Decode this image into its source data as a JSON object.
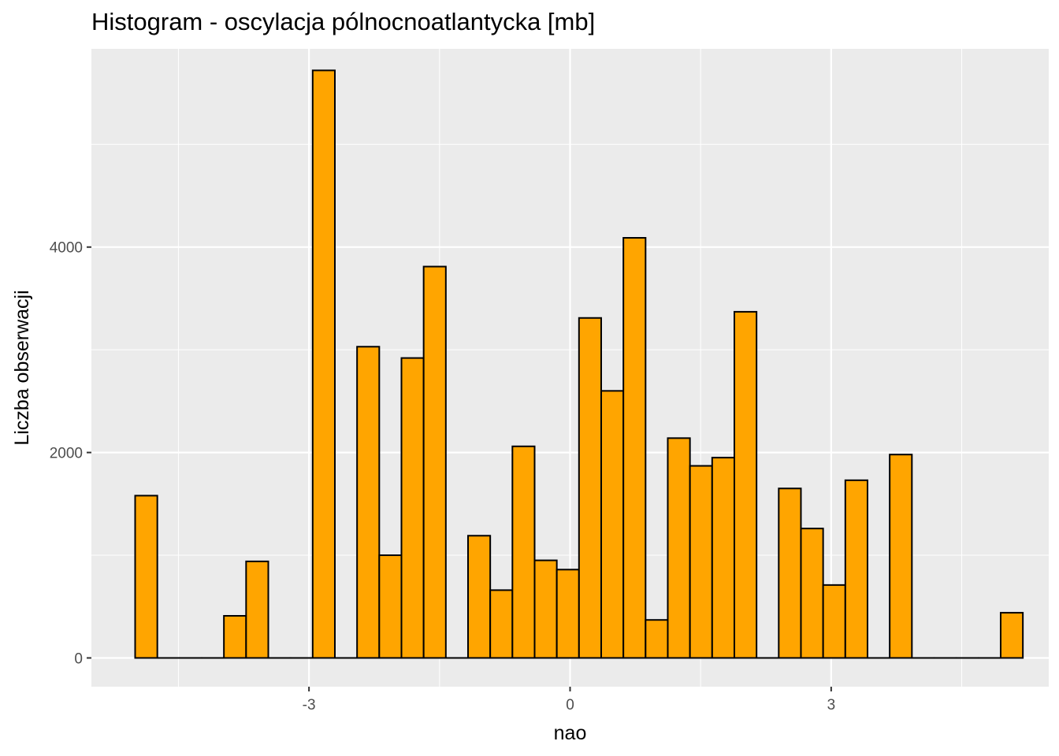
{
  "chart_data": {
    "type": "bar",
    "title": "Histogram - oscylacja pólnocnoatlantycka [mb]",
    "xlabel": "nao",
    "ylabel": "Liczba obserwacji",
    "xlim": [
      -5.5,
      5.5
    ],
    "ylim": [
      -280,
      5930
    ],
    "x_ticks": [
      -3,
      0,
      3
    ],
    "x_tick_labels": [
      "-3",
      "0",
      "3"
    ],
    "y_ticks": [
      0,
      2000,
      4000
    ],
    "y_tick_labels": [
      "0",
      "2000",
      "4000"
    ],
    "bin_width": 0.255,
    "bin_centers": [
      -4.87,
      -4.615,
      -4.36,
      -4.105,
      -3.85,
      -3.595,
      -3.34,
      -3.085,
      -2.83,
      -2.575,
      -2.32,
      -2.065,
      -1.81,
      -1.555,
      -1.3,
      -1.045,
      -0.79,
      -0.535,
      -0.28,
      -0.025,
      0.23,
      0.485,
      0.74,
      0.995,
      1.25,
      1.505,
      1.76,
      2.015,
      2.27,
      2.525,
      2.78,
      3.035,
      3.29,
      3.545,
      3.8,
      4.055,
      4.31,
      4.565,
      4.82,
      5.075
    ],
    "values": [
      1580,
      0,
      0,
      0,
      410,
      940,
      0,
      0,
      5720,
      0,
      3030,
      1000,
      2920,
      3810,
      0,
      1190,
      660,
      2060,
      950,
      860,
      3310,
      2600,
      4090,
      370,
      2140,
      1870,
      1950,
      3370,
      0,
      1650,
      1260,
      710,
      1730,
      0,
      1980,
      0,
      0,
      0,
      0,
      440
    ],
    "grid": true,
    "legend": "none",
    "colors": {
      "panel_background": "#ebebeb",
      "grid_major": "#ffffff",
      "bar_fill": "#ffa500",
      "bar_stroke": "#000000",
      "tick_text": "#4d4d4d"
    }
  }
}
